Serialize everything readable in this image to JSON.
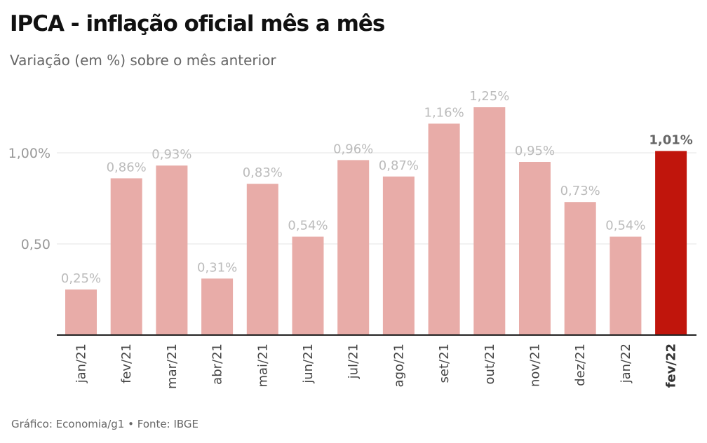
{
  "chart_data": {
    "type": "bar",
    "title": "IPCA - inflação oficial mês a mês",
    "subtitle": "Variação (em %) sobre o mês anterior",
    "source": "Gráfico: Economia/g1 • Fonte: IBGE",
    "categories": [
      "jan/21",
      "fev/21",
      "mar/21",
      "abr/21",
      "mai/21",
      "jun/21",
      "jul/21",
      "ago/21",
      "set/21",
      "out/21",
      "nov/21",
      "dez/21",
      "jan/22",
      "fev/22"
    ],
    "values": [
      0.25,
      0.86,
      0.93,
      0.31,
      0.83,
      0.54,
      0.96,
      0.87,
      1.16,
      1.25,
      0.95,
      0.73,
      0.54,
      1.01
    ],
    "data_labels": [
      "0,25%",
      "0,86%",
      "0,93%",
      "0,31%",
      "0,83%",
      "0,54%",
      "0,96%",
      "0,87%",
      "1,16%",
      "1,25%",
      "0,95%",
      "0,73%",
      "0,54%",
      "1,01%"
    ],
    "yticks": [
      {
        "value": 0.5,
        "label": "0,50"
      },
      {
        "value": 1.0,
        "label": "1,00%"
      }
    ],
    "ylim": [
      0,
      1.3
    ],
    "grid": true,
    "highlight_index": 13,
    "colors": {
      "bar": "#e8aca8",
      "highlight": "#c0150c"
    }
  }
}
